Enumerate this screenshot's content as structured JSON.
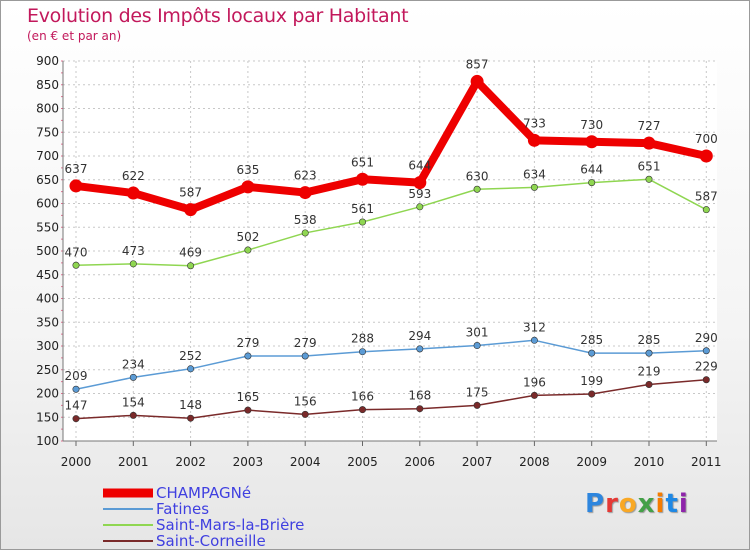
{
  "title": "Evolution des Impôts locaux par Habitant",
  "subtitle": "(en € et par an)",
  "logo": "Proxiti",
  "logo_colors": [
    "#2e86de",
    "#e53935",
    "#f9a825",
    "#43a047",
    "#f57c00",
    "#1e88e5",
    "#8e24aa"
  ],
  "chart_data": {
    "type": "line",
    "x": [
      "2000",
      "2001",
      "2002",
      "2003",
      "2004",
      "2005",
      "2006",
      "2007",
      "2008",
      "2009",
      "2010",
      "2011"
    ],
    "ylim": [
      100,
      900
    ],
    "yticks": [
      100,
      150,
      200,
      250,
      300,
      350,
      400,
      450,
      500,
      550,
      600,
      650,
      700,
      750,
      800,
      850,
      900
    ],
    "grid": true,
    "legend_position": "bottom-left",
    "series": [
      {
        "name": "CHAMPAGNé",
        "color": "#ee0000",
        "values": [
          637,
          622,
          587,
          635,
          623,
          651,
          644,
          857,
          733,
          730,
          727,
          700
        ],
        "labels": [
          "637",
          "622",
          "587",
          "635",
          "623",
          "651",
          "644",
          "857",
          "733",
          "730",
          "727",
          "700"
        ]
      },
      {
        "name": "Fatines",
        "color": "#5b9bd5",
        "values": [
          209,
          234,
          252,
          279,
          279,
          288,
          294,
          301,
          312,
          285,
          285,
          290
        ],
        "labels": [
          "209",
          "234",
          "252",
          "279",
          "279",
          "288",
          "294",
          "301",
          "312",
          "285",
          "285",
          "290"
        ]
      },
      {
        "name": "Saint-Mars-la-Brière",
        "color": "#8fd651",
        "values": [
          470,
          473,
          469,
          502,
          538,
          561,
          593,
          630,
          634,
          644,
          651,
          587
        ],
        "labels": [
          "470",
          "473",
          "469",
          "502",
          "538",
          "561",
          "593",
          "630",
          "634",
          "644",
          "651",
          "587"
        ]
      },
      {
        "name": "Saint-Corneille",
        "color": "#7a2a2a",
        "values": [
          147,
          154,
          148,
          165,
          156,
          166,
          168,
          175,
          196,
          199,
          219,
          229
        ],
        "labels": [
          "147",
          "154",
          "148",
          "165",
          "156",
          "166",
          "168",
          "175",
          "196",
          "199",
          "219",
          "229"
        ]
      }
    ]
  }
}
